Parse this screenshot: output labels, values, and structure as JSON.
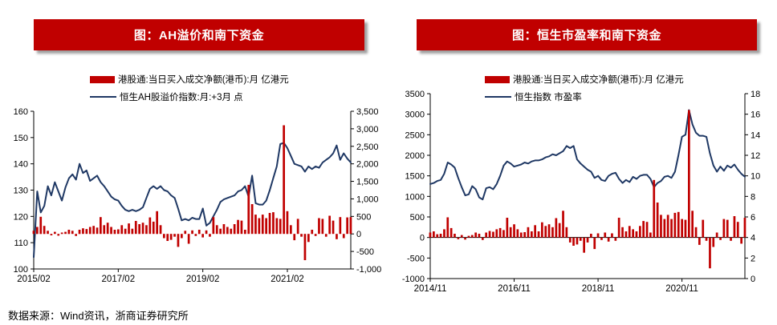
{
  "page": {
    "source_note": "数据来源：Wind资讯，浙商证券研究所"
  },
  "colors": {
    "banner_red": "#C00000",
    "bar_red": "#C00000",
    "line_navy": "#1F3864",
    "axis_black": "#000000"
  },
  "chart_data": [
    {
      "type": "bar+line",
      "title": "图：AH溢价和南下资金",
      "legend_position": "top-center",
      "grid": false,
      "zero_line": false,
      "x": [
        "2015/02",
        "2015/03",
        "2015/04",
        "2015/05",
        "2015/06",
        "2015/07",
        "2015/08",
        "2015/09",
        "2015/10",
        "2015/11",
        "2015/12",
        "2016/01",
        "2016/02",
        "2016/03",
        "2016/04",
        "2016/05",
        "2016/06",
        "2016/07",
        "2016/08",
        "2016/09",
        "2016/10",
        "2016/11",
        "2016/12",
        "2017/01",
        "2017/02",
        "2017/03",
        "2017/04",
        "2017/05",
        "2017/06",
        "2017/07",
        "2017/08",
        "2017/09",
        "2017/10",
        "2017/11",
        "2017/12",
        "2018/01",
        "2018/02",
        "2018/03",
        "2018/04",
        "2018/05",
        "2018/06",
        "2018/07",
        "2018/08",
        "2018/09",
        "2018/10",
        "2018/11",
        "2018/12",
        "2019/01",
        "2019/02",
        "2019/03",
        "2019/04",
        "2019/05",
        "2019/06",
        "2019/07",
        "2019/08",
        "2019/09",
        "2019/10",
        "2019/11",
        "2019/12",
        "2020/01",
        "2020/02",
        "2020/03",
        "2020/04",
        "2020/05",
        "2020/06",
        "2020/07",
        "2020/08",
        "2020/09",
        "2020/10",
        "2020/11",
        "2020/12",
        "2021/01",
        "2021/02",
        "2021/03",
        "2021/04",
        "2021/05",
        "2021/06",
        "2021/07",
        "2021/08",
        "2021/09",
        "2021/10",
        "2021/11",
        "2021/12",
        "2022/01",
        "2022/02",
        "2022/03",
        "2022/04",
        "2022/05",
        "2022/06",
        "2022/07",
        "2022/08"
      ],
      "x_tick_labels": [
        "2015/02",
        "2017/02",
        "2019/02",
        "2021/02"
      ],
      "x_tick_positions": [
        0,
        24,
        48,
        72
      ],
      "left_axis": {
        "min": 100,
        "max": 160,
        "tick_labels": [
          "160",
          "150",
          "140",
          "130",
          "120",
          "110",
          "100"
        ]
      },
      "right_axis": {
        "min": -1000,
        "max": 3500,
        "tick_labels": [
          "3,500",
          "3,000",
          "2,500",
          "2,000",
          "1,500",
          "1,000",
          "500",
          "0",
          "-500",
          "-1,000"
        ]
      },
      "series": [
        {
          "name": "港股通:当日买入成交净额(港币):月 亿港元",
          "type": "bar",
          "axis": "right",
          "color": "#C00000",
          "values": [
            90,
            200,
            490,
            230,
            90,
            -40,
            60,
            -50,
            40,
            60,
            120,
            90,
            -60,
            120,
            160,
            140,
            200,
            230,
            180,
            480,
            250,
            320,
            200,
            120,
            130,
            250,
            150,
            300,
            150,
            370,
            280,
            320,
            250,
            470,
            350,
            650,
            250,
            -120,
            -200,
            -170,
            -80,
            -370,
            -120,
            90,
            -280,
            100,
            -60,
            120,
            -100,
            100,
            -80,
            480,
            250,
            150,
            280,
            200,
            150,
            280,
            400,
            380,
            120,
            1400,
            850,
            550,
            450,
            550,
            450,
            600,
            620,
            450,
            430,
            3100,
            650,
            250,
            -180,
            430,
            -80,
            -750,
            -230,
            120,
            -60,
            450,
            430,
            -80,
            520,
            380,
            -150,
            480,
            -120,
            470,
            480
          ]
        },
        {
          "name": "恒生AH股溢价指数:月:+3月 点",
          "type": "line",
          "axis": "left",
          "color": "#1F3864",
          "values": [
            104.5,
            129.5,
            121.5,
            124,
            131.5,
            128,
            133,
            129.5,
            126,
            131,
            134.5,
            136,
            134,
            140,
            136.5,
            137.5,
            133.5,
            134.5,
            135.5,
            133,
            131.5,
            129.5,
            127.5,
            126.5,
            126,
            124,
            122.5,
            122,
            122.5,
            122,
            122.5,
            123.5,
            127,
            130.5,
            131.5,
            130.5,
            131.5,
            130,
            129.5,
            128,
            127,
            123,
            118.5,
            119,
            118.5,
            119.5,
            119,
            119,
            123,
            116.5,
            117.5,
            120,
            122.5,
            125.5,
            126.5,
            127,
            127.5,
            128,
            129.5,
            130,
            131.5,
            127.5,
            135.5,
            125,
            124.5,
            124.5,
            126,
            130,
            134.5,
            139,
            147.5,
            148,
            146,
            143,
            140,
            139.5,
            139,
            137,
            139,
            138,
            139,
            138.5,
            140.5,
            141.5,
            142.5,
            144,
            147,
            141.5,
            144,
            142,
            140.5
          ]
        }
      ]
    },
    {
      "type": "bar+line",
      "title": "图：恒生市盈率和南下资金",
      "legend_position": "top-center",
      "grid": false,
      "zero_line": true,
      "x": [
        "2014/11",
        "2014/12",
        "2015/01",
        "2015/02",
        "2015/03",
        "2015/04",
        "2015/05",
        "2015/06",
        "2015/07",
        "2015/08",
        "2015/09",
        "2015/10",
        "2015/11",
        "2015/12",
        "2016/01",
        "2016/02",
        "2016/03",
        "2016/04",
        "2016/05",
        "2016/06",
        "2016/07",
        "2016/08",
        "2016/09",
        "2016/10",
        "2016/11",
        "2016/12",
        "2017/01",
        "2017/02",
        "2017/03",
        "2017/04",
        "2017/05",
        "2017/06",
        "2017/07",
        "2017/08",
        "2017/09",
        "2017/10",
        "2017/11",
        "2017/12",
        "2018/01",
        "2018/02",
        "2018/03",
        "2018/04",
        "2018/05",
        "2018/06",
        "2018/07",
        "2018/08",
        "2018/09",
        "2018/10",
        "2018/11",
        "2018/12",
        "2019/01",
        "2019/02",
        "2019/03",
        "2019/04",
        "2019/05",
        "2019/06",
        "2019/07",
        "2019/08",
        "2019/09",
        "2019/10",
        "2019/11",
        "2019/12",
        "2020/01",
        "2020/02",
        "2020/03",
        "2020/04",
        "2020/05",
        "2020/06",
        "2020/07",
        "2020/08",
        "2020/09",
        "2020/10",
        "2020/11",
        "2020/12",
        "2021/01",
        "2021/02",
        "2021/03",
        "2021/04",
        "2021/05",
        "2021/06",
        "2021/07",
        "2021/08",
        "2021/09",
        "2021/10",
        "2021/11",
        "2021/12",
        "2022/01",
        "2022/02",
        "2022/03",
        "2022/04",
        "2022/05"
      ],
      "x_tick_labels": [
        "2014/11",
        "2016/11",
        "2018/11",
        "2020/11"
      ],
      "x_tick_positions": [
        0,
        24,
        48,
        72
      ],
      "left_axis": {
        "min": -1000,
        "max": 3500,
        "tick_labels": [
          "3500",
          "3000",
          "2500",
          "2000",
          "1500",
          "1000",
          "500",
          "0",
          "-500",
          "-1000"
        ]
      },
      "right_axis": {
        "min": 0,
        "max": 18,
        "tick_labels": [
          "18",
          "16",
          "14",
          "12",
          "10",
          "8",
          "6",
          "4",
          "2",
          "0"
        ]
      },
      "series": [
        {
          "name": "港股通:当日买入成交净额(港币):月 亿港元",
          "type": "bar",
          "axis": "left",
          "color": "#C00000",
          "values": [
            120,
            150,
            80,
            90,
            200,
            490,
            230,
            90,
            -40,
            60,
            -50,
            40,
            60,
            120,
            90,
            -60,
            120,
            160,
            140,
            200,
            230,
            180,
            480,
            250,
            320,
            200,
            120,
            130,
            250,
            150,
            300,
            150,
            370,
            280,
            320,
            250,
            470,
            350,
            650,
            250,
            -120,
            -200,
            -170,
            -80,
            -370,
            -120,
            90,
            -280,
            100,
            -60,
            120,
            -100,
            100,
            -80,
            480,
            250,
            150,
            280,
            200,
            150,
            280,
            400,
            380,
            120,
            1400,
            850,
            550,
            450,
            550,
            450,
            600,
            620,
            450,
            430,
            3100,
            650,
            250,
            -180,
            430,
            -80,
            -750,
            -230,
            120,
            -60,
            450,
            430,
            -80,
            520,
            380,
            -150,
            480
          ]
        },
        {
          "name": "恒生指数 市盈率",
          "type": "line",
          "axis": "right",
          "color": "#1F3864",
          "values": [
            9.2,
            9.3,
            9.5,
            9.6,
            10.2,
            11.3,
            11.1,
            10.8,
            9.8,
            8.9,
            8.1,
            8.2,
            9.0,
            8.7,
            7.9,
            7.7,
            8.8,
            8.9,
            8.7,
            9.2,
            10.0,
            11.0,
            11.4,
            11.2,
            10.9,
            11.0,
            11.1,
            11.3,
            11.2,
            11.4,
            11.5,
            11.5,
            11.6,
            11.8,
            11.9,
            12.1,
            12.0,
            12.2,
            12.4,
            12.9,
            12.7,
            12.9,
            11.6,
            11.2,
            10.9,
            10.6,
            10.4,
            9.8,
            10.0,
            9.6,
            9.5,
            10.0,
            10.2,
            10.3,
            9.7,
            9.3,
            9.6,
            9.4,
            9.9,
            9.7,
            10.0,
            10.1,
            10.1,
            9.7,
            8.9,
            9.3,
            9.5,
            9.9,
            10.0,
            9.8,
            10.4,
            12.0,
            13.8,
            14.0,
            16.4,
            15.0,
            14.2,
            13.9,
            13.9,
            13.8,
            12.2,
            11.0,
            10.4,
            10.9,
            10.5,
            11.0,
            10.8,
            11.1,
            10.6,
            10.2,
            9.9
          ]
        }
      ]
    }
  ]
}
